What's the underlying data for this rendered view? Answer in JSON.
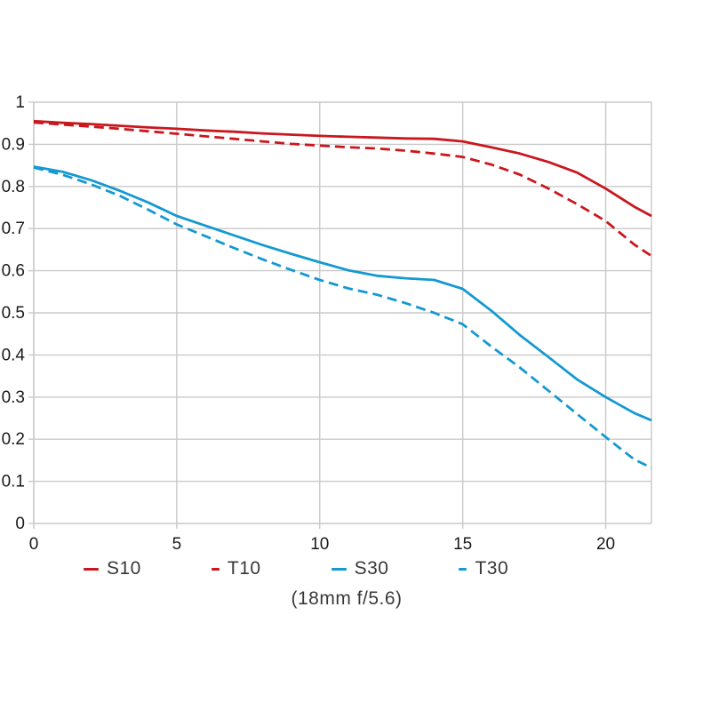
{
  "page": {
    "background": "#ffffff"
  },
  "chart_data": {
    "type": "line",
    "title": "",
    "caption": "(18mm f/5.6)",
    "xlabel": "",
    "ylabel": "",
    "xlim": [
      0,
      21.6
    ],
    "ylim": [
      0,
      1
    ],
    "grid": true,
    "legend_position": "bottom",
    "colors": {
      "red": "#c9171e",
      "cyan": "#1499d1",
      "grid": "#c9c9c9",
      "tick_text": "#1a1a1a"
    },
    "xticks": {
      "values": [
        0,
        5,
        10,
        15,
        20
      ],
      "labels": [
        "0",
        "5",
        "10",
        "15",
        "20"
      ]
    },
    "yticks": {
      "values": [
        0,
        0.1,
        0.2,
        0.3,
        0.4,
        0.5,
        0.6,
        0.7,
        0.8,
        0.9,
        1
      ],
      "labels": [
        "0",
        "0.1",
        "0.2",
        "0.3",
        "0.4",
        "0.5",
        "0.6",
        "0.7",
        "0.8",
        "0.9",
        "1"
      ]
    },
    "x": [
      0,
      1,
      2,
      3,
      4,
      5,
      6,
      7,
      8,
      9,
      10,
      11,
      12,
      13,
      14,
      15,
      16,
      17,
      18,
      19,
      20,
      21,
      21.6
    ],
    "series": [
      {
        "name": "S10",
        "color": "#c9171e",
        "style": "solid",
        "values": [
          0.955,
          0.951,
          0.948,
          0.944,
          0.94,
          0.937,
          0.933,
          0.93,
          0.926,
          0.923,
          0.92,
          0.918,
          0.916,
          0.914,
          0.913,
          0.907,
          0.893,
          0.878,
          0.858,
          0.833,
          0.795,
          0.752,
          0.73
        ]
      },
      {
        "name": "T10",
        "color": "#c9171e",
        "style": "dashed",
        "values": [
          0.952,
          0.947,
          0.942,
          0.937,
          0.931,
          0.925,
          0.919,
          0.913,
          0.907,
          0.901,
          0.897,
          0.893,
          0.89,
          0.885,
          0.878,
          0.87,
          0.852,
          0.828,
          0.795,
          0.758,
          0.718,
          0.662,
          0.635
        ]
      },
      {
        "name": "S30",
        "color": "#1499d1",
        "style": "solid",
        "values": [
          0.847,
          0.835,
          0.815,
          0.79,
          0.762,
          0.73,
          0.707,
          0.684,
          0.661,
          0.64,
          0.62,
          0.601,
          0.588,
          0.582,
          0.578,
          0.557,
          0.505,
          0.447,
          0.395,
          0.342,
          0.3,
          0.262,
          0.245
        ]
      },
      {
        "name": "T30",
        "color": "#1499d1",
        "style": "dashed",
        "values": [
          0.845,
          0.828,
          0.805,
          0.778,
          0.745,
          0.71,
          0.682,
          0.654,
          0.627,
          0.602,
          0.578,
          0.558,
          0.543,
          0.523,
          0.5,
          0.473,
          0.42,
          0.37,
          0.315,
          0.26,
          0.205,
          0.152,
          0.132
        ]
      }
    ]
  }
}
